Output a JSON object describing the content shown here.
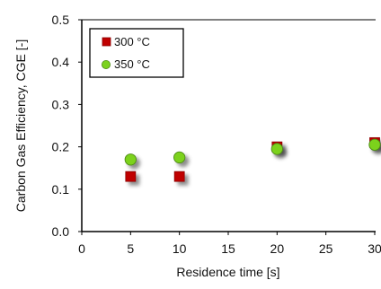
{
  "chart_data": {
    "type": "scatter",
    "title": "",
    "xlabel": "Residence time [s]",
    "ylabel": "Carbon Gas Efficiency, CGE [-]",
    "xlim": [
      0,
      30
    ],
    "ylim": [
      0,
      0.5
    ],
    "x_ticks": [
      "0",
      "5",
      "10",
      "15",
      "20",
      "25",
      "30"
    ],
    "y_ticks": [
      "0.0",
      "0.1",
      "0.2",
      "0.3",
      "0.4",
      "0.5"
    ],
    "grid": false,
    "legend_position": "top-left",
    "series": [
      {
        "name": "300 °C",
        "marker": "square",
        "color": "#c00000",
        "x": [
          5,
          10,
          20,
          30
        ],
        "y": [
          0.13,
          0.13,
          0.2,
          0.21
        ]
      },
      {
        "name": "350 °C",
        "marker": "circle",
        "color": "#7cd21f",
        "x": [
          5,
          10,
          20,
          30
        ],
        "y": [
          0.17,
          0.175,
          0.195,
          0.205
        ]
      }
    ]
  }
}
